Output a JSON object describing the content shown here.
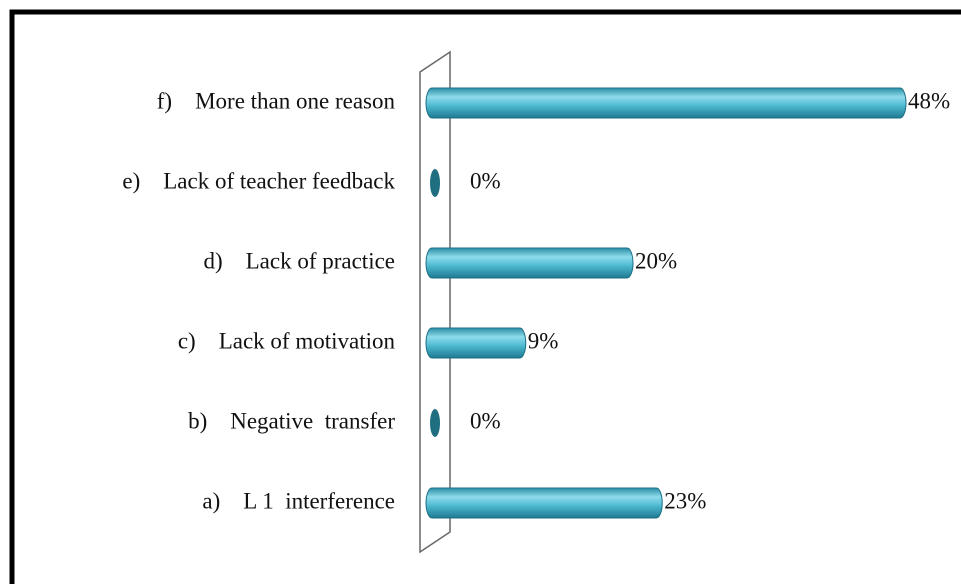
{
  "chart_data": {
    "type": "bar",
    "orientation": "horizontal",
    "categories": [
      "f)    More than one reason",
      "e)    Lack of teacher feedback",
      "d)    Lack of practice",
      "c)    Lack of motivation",
      "b)    Negative  transfer",
      "a)    L 1  interference"
    ],
    "values": [
      48,
      0,
      20,
      9,
      0,
      23
    ],
    "value_labels": [
      "48%",
      "0%",
      "20%",
      "9%",
      "0%",
      "23%"
    ],
    "color": "#4bb8d0"
  }
}
